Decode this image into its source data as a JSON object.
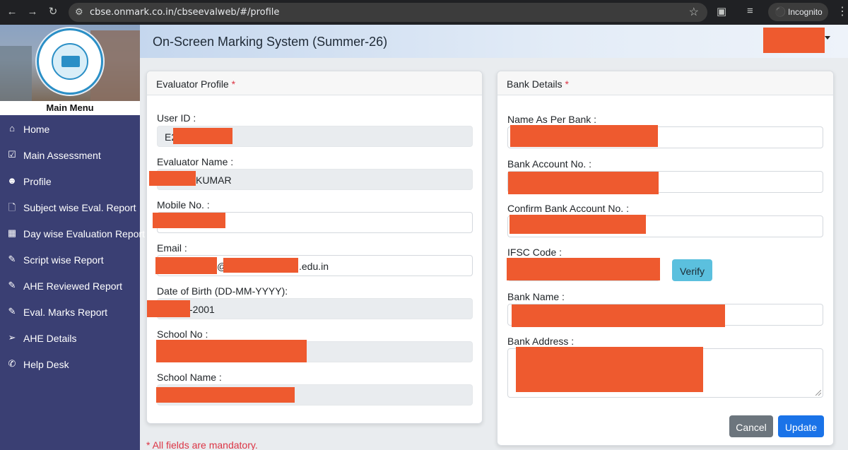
{
  "browser": {
    "url": "cbse.onmark.co.in/cbseevalweb/#/profile",
    "incognito_label": "Incognito"
  },
  "sidebar": {
    "main_menu_label": "Main Menu",
    "items": [
      {
        "label": "Home",
        "icon": "home-icon"
      },
      {
        "label": "Main Assessment",
        "icon": "checkbox-icon"
      },
      {
        "label": "Profile",
        "icon": "user-circle-icon"
      },
      {
        "label": "Subject wise Eval. Report",
        "icon": "file-icon"
      },
      {
        "label": "Day wise Evaluation Report",
        "icon": "calendar-icon"
      },
      {
        "label": "Script wise Report",
        "icon": "edit-icon"
      },
      {
        "label": "AHE Reviewed Report",
        "icon": "edit-icon"
      },
      {
        "label": "Eval. Marks Report",
        "icon": "edit-icon"
      },
      {
        "label": "AHE Details",
        "icon": "arrow-circle-right-icon"
      },
      {
        "label": "Help Desk",
        "icon": "phone-icon"
      }
    ]
  },
  "header": {
    "title": "On-Screen Marking System (Summer-26)"
  },
  "evaluator_profile": {
    "title": "Evaluator Profile",
    "required_mark": "*",
    "fields": {
      "user_id": {
        "label": "User ID :",
        "value": "E2"
      },
      "evaluator_name": {
        "label": "Evaluator Name :",
        "value": "KUMAR"
      },
      "mobile": {
        "label": "Mobile No. :",
        "value": ""
      },
      "email": {
        "label": "Email :",
        "value_at": "@",
        "value_domain": ".edu.in"
      },
      "dob": {
        "label": "Date of Birth (DD-MM-YYYY):",
        "value": "-2001"
      },
      "school_no": {
        "label": "School No :",
        "value": ""
      },
      "school_name": {
        "label": "School Name :",
        "value": ""
      }
    }
  },
  "bank_details": {
    "title": "Bank Details",
    "required_mark": "*",
    "fields": {
      "name_as_per_bank": {
        "label": "Name As Per Bank :"
      },
      "account_no": {
        "label": "Bank Account No. :"
      },
      "confirm_account_no": {
        "label": "Confirm Bank Account No. :"
      },
      "ifsc": {
        "label": "IFSC Code :"
      },
      "bank_name": {
        "label": "Bank Name :"
      },
      "bank_address": {
        "label": "Bank Address :"
      }
    },
    "verify_label": "Verify",
    "cancel_label": "Cancel",
    "update_label": "Update"
  },
  "footer_note": "* All fields are mandatory.",
  "colors": {
    "sidebar_bg": "#3a3f73",
    "redaction": "#ee5a2f",
    "verify_btn": "#5bc0de",
    "update_btn": "#1a73e8",
    "cancel_btn": "#6c757d",
    "required": "#dc3545"
  }
}
